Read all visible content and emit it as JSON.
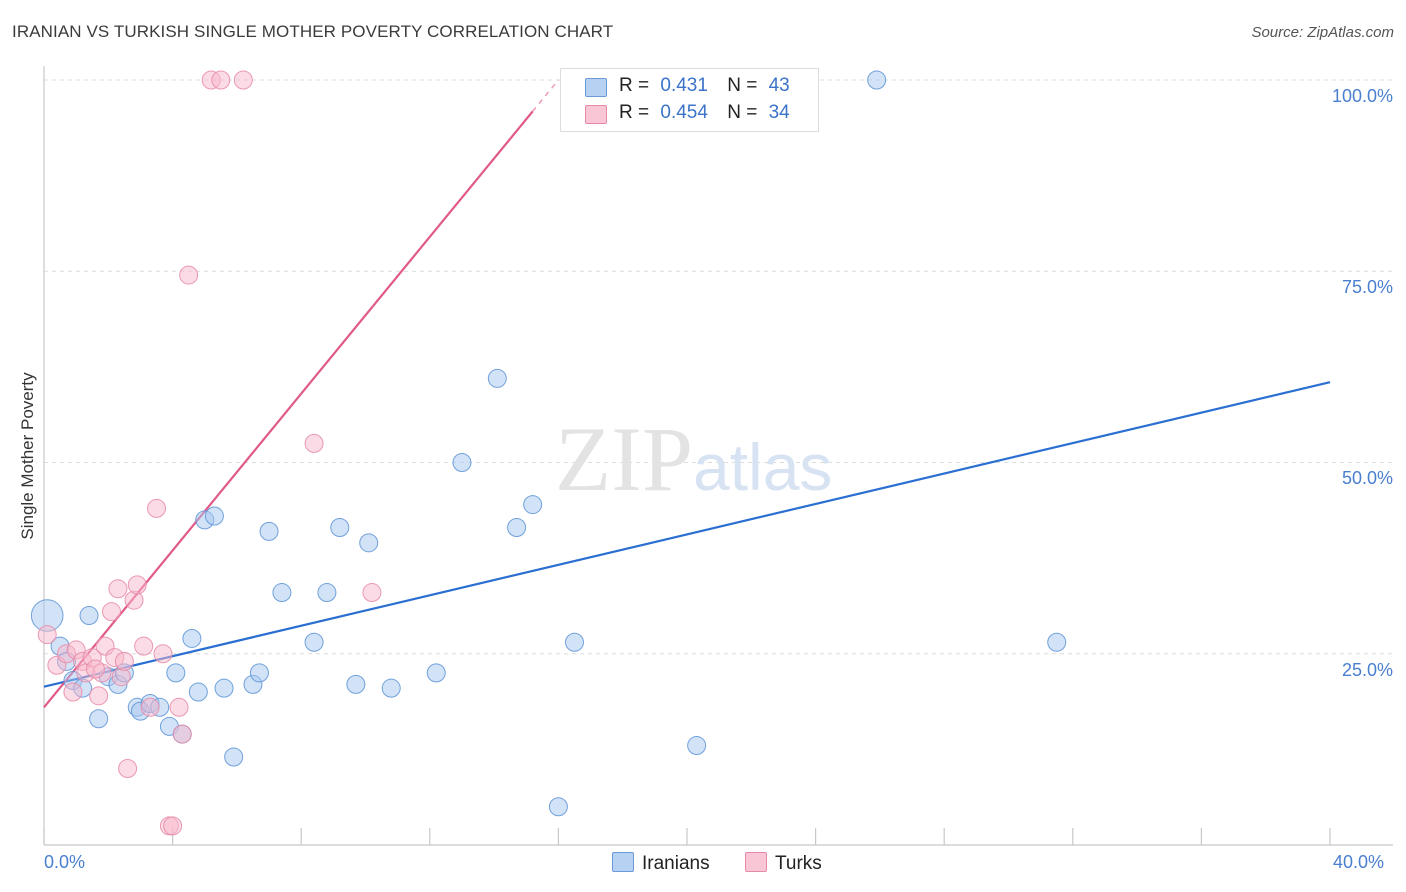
{
  "title": "IRANIAN VS TURKISH SINGLE MOTHER POVERTY CORRELATION CHART",
  "source": "Source: ZipAtlas.com",
  "watermark": "ZIPatlas",
  "colors": {
    "blue_fill": "#a8c8f0",
    "blue_stroke": "#5b93d6",
    "blue_line": "#2a6fd1",
    "pink_fill": "#f7b8cc",
    "pink_stroke": "#e68aa7",
    "pink_line": "#e05a88",
    "grid": "#dcdcdc",
    "tick_label": "#4a7fd0"
  },
  "stats": [
    {
      "r_label": "R =",
      "r_value": "0.431",
      "n_label": "N =",
      "n_value": "43"
    },
    {
      "r_label": "R =",
      "r_value": "0.454",
      "n_label": "N =",
      "n_value": "34"
    }
  ],
  "chart_data": {
    "type": "scatter",
    "title": "IRANIAN VS TURKISH SINGLE MOTHER POVERTY CORRELATION CHART",
    "xlabel": "",
    "ylabel": "Single Mother Poverty",
    "xlim": [
      0,
      40
    ],
    "ylim": [
      0,
      100
    ],
    "x_tick_labels": [
      "0.0%",
      "40.0%"
    ],
    "y_tick_labels": [
      "100.0%",
      "75.0%",
      "50.0%",
      "25.0%"
    ],
    "y_gridlines": [
      25,
      50,
      75,
      100
    ],
    "legend_position": "bottom-center",
    "series": [
      {
        "name": "Iranians",
        "color": "#a8c8f0",
        "trend": {
          "x0": 0,
          "y0": 20.7,
          "x1": 40,
          "y1": 60.5
        },
        "points": [
          [
            0.1,
            30.0,
            18
          ],
          [
            0.5,
            26.0,
            10
          ],
          [
            0.7,
            24.0,
            10
          ],
          [
            0.9,
            21.5,
            10
          ],
          [
            1.2,
            20.5,
            10
          ],
          [
            1.4,
            30.0,
            10
          ],
          [
            1.7,
            16.5,
            10
          ],
          [
            2.0,
            22.0,
            10
          ],
          [
            2.3,
            21.0,
            10
          ],
          [
            2.5,
            22.5,
            10
          ],
          [
            2.9,
            18.0,
            10
          ],
          [
            3.0,
            17.5,
            10
          ],
          [
            3.3,
            18.5,
            10
          ],
          [
            3.6,
            18.0,
            10
          ],
          [
            3.9,
            15.5,
            10
          ],
          [
            4.1,
            22.5,
            10
          ],
          [
            4.3,
            14.5,
            10
          ],
          [
            4.6,
            27.0,
            10
          ],
          [
            4.8,
            20.0,
            10
          ],
          [
            5.0,
            42.5,
            10
          ],
          [
            5.3,
            43.0,
            10
          ],
          [
            5.6,
            20.5,
            10
          ],
          [
            5.9,
            11.5,
            10
          ],
          [
            6.5,
            21.0,
            10
          ],
          [
            6.7,
            22.5,
            10
          ],
          [
            7.0,
            41.0,
            10
          ],
          [
            7.4,
            33.0,
            10
          ],
          [
            8.4,
            26.5,
            10
          ],
          [
            8.8,
            33.0,
            10
          ],
          [
            9.2,
            41.5,
            10
          ],
          [
            9.7,
            21.0,
            10
          ],
          [
            10.1,
            39.5,
            10
          ],
          [
            10.8,
            20.5,
            10
          ],
          [
            12.2,
            22.5,
            10
          ],
          [
            13.0,
            50.0,
            10
          ],
          [
            14.1,
            61.0,
            10
          ],
          [
            14.7,
            41.5,
            10
          ],
          [
            15.2,
            44.5,
            10
          ],
          [
            16.0,
            5.0,
            10
          ],
          [
            16.5,
            26.5,
            10
          ],
          [
            20.3,
            13.0,
            10
          ],
          [
            25.9,
            100.0,
            10
          ],
          [
            31.5,
            26.5,
            10
          ]
        ]
      },
      {
        "name": "Turks",
        "color": "#f7b8cc",
        "trend": {
          "x0": 0,
          "y0": 18.0,
          "x1": 16.0,
          "y1": 100.0,
          "solid_until_x": 15.2
        },
        "points": [
          [
            0.1,
            27.5,
            10
          ],
          [
            0.4,
            23.5,
            10
          ],
          [
            0.7,
            25.0,
            10
          ],
          [
            0.9,
            20.0,
            10
          ],
          [
            1.0,
            25.5,
            10
          ],
          [
            1.2,
            24.0,
            10
          ],
          [
            1.3,
            22.5,
            10
          ],
          [
            1.5,
            24.5,
            10
          ],
          [
            1.7,
            19.5,
            10
          ],
          [
            1.8,
            22.5,
            10
          ],
          [
            1.9,
            26.0,
            10
          ],
          [
            2.1,
            30.5,
            10
          ],
          [
            2.2,
            24.5,
            10
          ],
          [
            2.3,
            33.5,
            10
          ],
          [
            2.4,
            22.0,
            10
          ],
          [
            2.5,
            24.0,
            10
          ],
          [
            2.6,
            10.0,
            10
          ],
          [
            2.8,
            32.0,
            10
          ],
          [
            2.9,
            34.0,
            10
          ],
          [
            3.1,
            26.0,
            10
          ],
          [
            3.3,
            18.0,
            10
          ],
          [
            3.5,
            44.0,
            10
          ],
          [
            3.7,
            25.0,
            10
          ],
          [
            3.9,
            2.5,
            10
          ],
          [
            4.0,
            2.5,
            10
          ],
          [
            4.2,
            18.0,
            10
          ],
          [
            4.3,
            14.5,
            10
          ],
          [
            4.5,
            74.5,
            10
          ],
          [
            5.2,
            100.0,
            10
          ],
          [
            5.5,
            100.0,
            10
          ],
          [
            6.2,
            100.0,
            10
          ],
          [
            8.4,
            52.5,
            10
          ],
          [
            10.2,
            33.0,
            10
          ],
          [
            1.6,
            23.0,
            10
          ]
        ]
      }
    ]
  }
}
